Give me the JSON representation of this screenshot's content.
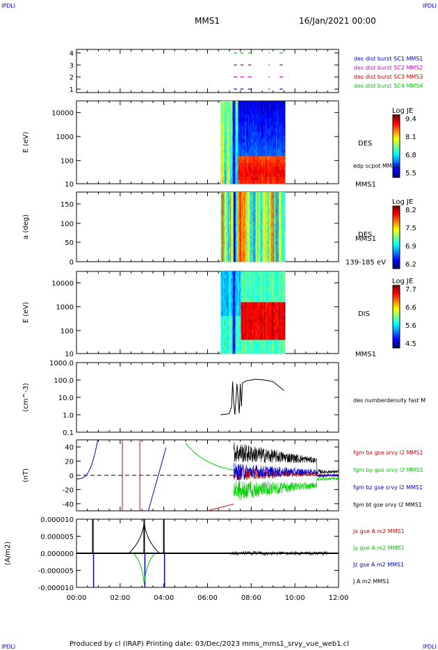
{
  "header": {
    "corner_tl": "IPDLI",
    "corner_tr": "IPDLI",
    "corner_bl": "IPDLI",
    "corner_br": "IPDLI",
    "mission": "MMS1",
    "date": "16/Jan/2021 00:00",
    "footer": "Produced by cl (IRAP)   Printing date: 03/Dec/2023   mms_mms1_srvy_vue_web1.cl"
  },
  "colors": {
    "mms1": "#0000cc",
    "mms2": "#cc00cc",
    "mms3": "#cc0000",
    "mms4": "#00cc00",
    "black": "#000000"
  },
  "chart_data": [
    {
      "type": "line",
      "panel": "burst",
      "ylim": [
        1,
        4
      ],
      "ticks": [
        "1",
        "2",
        "3",
        "4"
      ],
      "legend": [
        "des dist burst SC1 MMS1",
        "des dist burst SC2 MMS2",
        "des dist burst SC3 MMS3",
        "des dist burst SC4 MMS4"
      ],
      "intervals_hours": [
        [
          7.2,
          7.35
        ],
        [
          7.5,
          7.65
        ],
        [
          7.85,
          8.0
        ],
        [
          8.8,
          8.85
        ],
        [
          9.3,
          9.45
        ]
      ]
    },
    {
      "type": "heatmap",
      "panel": "des-energy",
      "ylabel": "E (eV)",
      "ticks": [
        "10",
        "100",
        "1000",
        "10000"
      ],
      "right_label": "DES",
      "right_sub": "edp scpot MMS1",
      "bottom_right": "MMS1",
      "colorbar": {
        "title": "Log JE",
        "ticks": [
          "9.4",
          "8.1",
          "6.8",
          "5.5"
        ]
      },
      "time_range_hours": [
        6.6,
        9.55
      ]
    },
    {
      "type": "heatmap",
      "panel": "des-pitch",
      "ylabel": "a (deg)",
      "ticks": [
        "0",
        "50",
        "100",
        "150"
      ],
      "right_label": "DES",
      "right_sub": "MMS1",
      "bottom_right": "139-185 eV",
      "colorbar": {
        "title": "Log JE",
        "ticks": [
          "8.2",
          "7.5",
          "6.9",
          "6.2"
        ]
      },
      "time_range_hours": [
        6.6,
        9.55
      ]
    },
    {
      "type": "heatmap",
      "panel": "dis-energy",
      "ylabel": "E (eV)",
      "ticks": [
        "10",
        "100",
        "1000",
        "10000"
      ],
      "right_label": "DIS",
      "bottom_right": "MMS1",
      "colorbar": {
        "title": "Log JE",
        "ticks": [
          "7.7",
          "6.6",
          "5.6",
          "4.5"
        ]
      },
      "time_range_hours": [
        6.6,
        9.55
      ]
    },
    {
      "type": "line",
      "panel": "density",
      "ylabel": "(cm^-3)",
      "ticks": [
        "0.1",
        "1.0",
        "10.0",
        "100.0",
        "1000.0"
      ],
      "legend": [
        "des numberdensity fast M"
      ],
      "x": [
        6.6,
        6.9,
        7.0,
        7.1,
        7.15,
        7.2,
        7.25,
        7.35,
        7.45,
        7.5,
        7.55,
        7.6,
        7.8,
        8.2,
        8.6,
        9.0,
        9.2,
        9.5
      ],
      "y": [
        1.0,
        1.1,
        1.2,
        3.0,
        80,
        5,
        1.0,
        60,
        1.2,
        60,
        3,
        70,
        90,
        110,
        100,
        80,
        50,
        25
      ]
    },
    {
      "type": "line",
      "panel": "fgm",
      "ylabel": "(nT)",
      "ticks": [
        "-40",
        "-20",
        "0",
        "20",
        "40"
      ],
      "ylim": [
        -50,
        50
      ],
      "legend": [
        "fgm bx gse srvy l2 MMS1",
        "fgm by gse srvy l2 MMS1",
        "fgm bz gse srvy l2 MMS1",
        "fgm bt gse srvy l2 MMS1"
      ]
    },
    {
      "type": "line",
      "panel": "current",
      "ylabel": "(A/m2)",
      "ticks": [
        "-0.000010",
        "-0.000005",
        "0.000000",
        "0.000005",
        "0.000010"
      ],
      "ylim": [
        -1e-05,
        1e-05
      ],
      "legend": [
        "Jx gse A m2 MMS1",
        "Jy gse A m2 MMS1",
        "Jz gse A m2 MMS1",
        "J A m2 MMS1"
      ]
    }
  ],
  "xaxis": {
    "ticks": [
      "00:00",
      "02:00",
      "04:00",
      "06:00",
      "08:00",
      "10:00",
      "12:00"
    ],
    "range_hours": [
      0,
      12
    ]
  }
}
